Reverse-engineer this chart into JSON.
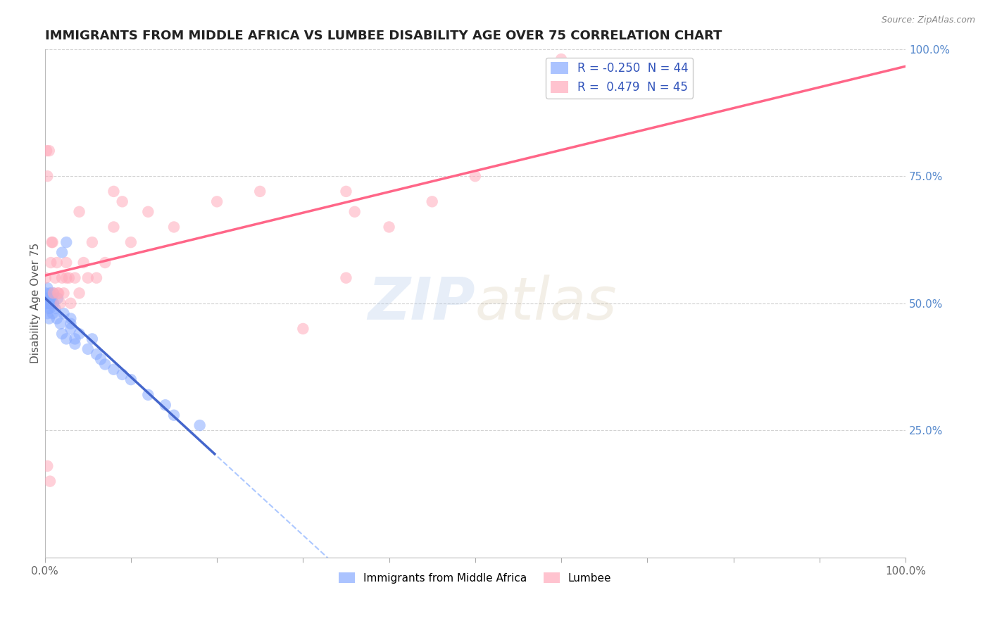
{
  "title": "IMMIGRANTS FROM MIDDLE AFRICA VS LUMBEE DISABILITY AGE OVER 75 CORRELATION CHART",
  "source_text": "Source: ZipAtlas.com",
  "ylabel": "Disability Age Over 75",
  "blue_label": "Immigrants from Middle Africa",
  "pink_label": "Lumbee",
  "blue_R": -0.25,
  "blue_N": 44,
  "pink_R": 0.479,
  "pink_N": 45,
  "blue_color": "#88aaff",
  "pink_color": "#ffaabb",
  "blue_line_color": "#4466cc",
  "pink_line_color": "#ff6688",
  "dash_color": "#99bbff",
  "watermark_color": "#b0c8e8",
  "right_tick_color": "#5588cc",
  "title_fontsize": 13,
  "label_fontsize": 11,
  "tick_fontsize": 11,
  "legend_fontsize": 12,
  "blue_x": [
    0.001,
    0.001,
    0.002,
    0.002,
    0.003,
    0.003,
    0.004,
    0.004,
    0.005,
    0.005,
    0.006,
    0.006,
    0.007,
    0.008,
    0.009,
    0.01,
    0.01,
    0.012,
    0.014,
    0.015,
    0.018,
    0.02,
    0.022,
    0.025,
    0.03,
    0.03,
    0.035,
    0.04,
    0.05,
    0.055,
    0.06,
    0.065,
    0.07,
    0.08,
    0.09,
    0.1,
    0.12,
    0.14,
    0.15,
    0.18,
    0.02,
    0.025,
    0.03,
    0.035
  ],
  "blue_y": [
    0.5,
    0.52,
    0.5,
    0.51,
    0.48,
    0.53,
    0.49,
    0.51,
    0.47,
    0.5,
    0.52,
    0.49,
    0.5,
    0.51,
    0.48,
    0.5,
    0.52,
    0.49,
    0.47,
    0.51,
    0.46,
    0.44,
    0.48,
    0.43,
    0.46,
    0.47,
    0.42,
    0.44,
    0.41,
    0.43,
    0.4,
    0.39,
    0.38,
    0.37,
    0.36,
    0.35,
    0.32,
    0.3,
    0.28,
    0.26,
    0.6,
    0.62,
    0.45,
    0.43
  ],
  "pink_x": [
    0.001,
    0.002,
    0.003,
    0.005,
    0.007,
    0.008,
    0.01,
    0.012,
    0.014,
    0.016,
    0.018,
    0.02,
    0.022,
    0.025,
    0.028,
    0.03,
    0.035,
    0.04,
    0.045,
    0.05,
    0.055,
    0.06,
    0.07,
    0.08,
    0.09,
    0.1,
    0.12,
    0.15,
    0.2,
    0.25,
    0.3,
    0.35,
    0.4,
    0.45,
    0.5,
    0.003,
    0.006,
    0.009,
    0.015,
    0.025,
    0.04,
    0.08,
    0.35,
    0.36,
    0.6
  ],
  "pink_y": [
    0.55,
    0.8,
    0.75,
    0.8,
    0.58,
    0.62,
    0.52,
    0.55,
    0.58,
    0.52,
    0.5,
    0.55,
    0.52,
    0.58,
    0.55,
    0.5,
    0.55,
    0.52,
    0.58,
    0.55,
    0.62,
    0.55,
    0.58,
    0.65,
    0.7,
    0.62,
    0.68,
    0.65,
    0.7,
    0.72,
    0.45,
    0.55,
    0.65,
    0.7,
    0.75,
    0.18,
    0.15,
    0.62,
    0.52,
    0.55,
    0.68,
    0.72,
    0.72,
    0.68,
    0.98
  ],
  "xlim": [
    0.0,
    1.0
  ],
  "ylim": [
    0.0,
    1.0
  ],
  "xtick_positions": [
    0.0,
    0.1,
    0.2,
    0.3,
    0.4,
    0.5,
    0.6,
    0.7,
    0.8,
    0.9,
    1.0
  ],
  "ytick_right_positions": [
    0.25,
    0.5,
    0.75,
    1.0
  ],
  "ytick_right_labels": [
    "25.0%",
    "50.0%",
    "75.0%",
    "100.0%"
  ],
  "blue_trend_x0": 0.0,
  "blue_trend_x_solid_end": 0.2,
  "pink_trend_x0": 0.0,
  "pink_trend_x_end": 1.0
}
